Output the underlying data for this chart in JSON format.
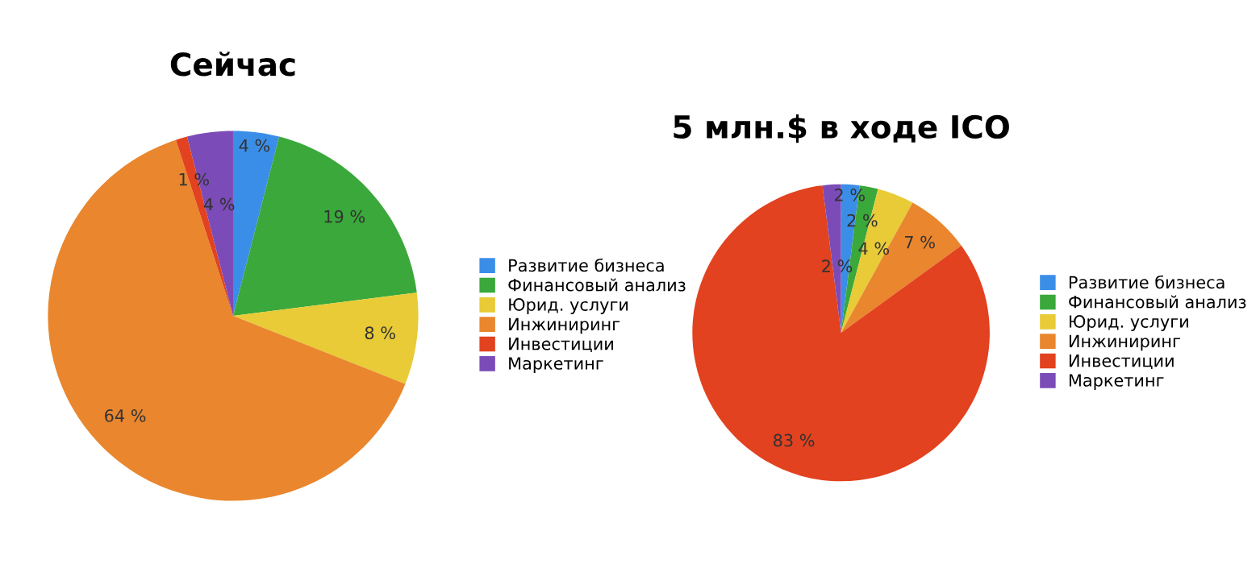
{
  "chart_data": [
    {
      "type": "pie",
      "title": "Сейчас",
      "categories": [
        "Развитие бизнеса",
        "Финансовый анализ",
        "Юрид. услуги",
        "Инжиниринг",
        "Инвестиции",
        "Маркетинг"
      ],
      "values": [
        4,
        19,
        8,
        64,
        1,
        4
      ],
      "colors": [
        "#3b8ee8",
        "#3aa83a",
        "#e8cb36",
        "#e9862e",
        "#e2421f",
        "#7b4cb8"
      ],
      "value_labels": [
        "4 %",
        "19 %",
        "8 %",
        "64 %",
        "1 %",
        "4 %"
      ],
      "legend": "right"
    },
    {
      "type": "pie",
      "title": "5 млн.$ в ходе ICO",
      "categories": [
        "Развитие бизнеса",
        "Финансовый анализ",
        "Юрид. услуги",
        "Инжиниринг",
        "Инвестиции",
        "Маркетинг"
      ],
      "values": [
        2,
        2,
        4,
        7,
        83,
        2
      ],
      "colors": [
        "#3b8ee8",
        "#3aa83a",
        "#e8cb36",
        "#e9862e",
        "#e2421f",
        "#7b4cb8"
      ],
      "value_labels": [
        "2 %",
        "2 %",
        "4 %",
        "7 %",
        "83 %",
        "2 %"
      ],
      "legend": "right"
    }
  ]
}
